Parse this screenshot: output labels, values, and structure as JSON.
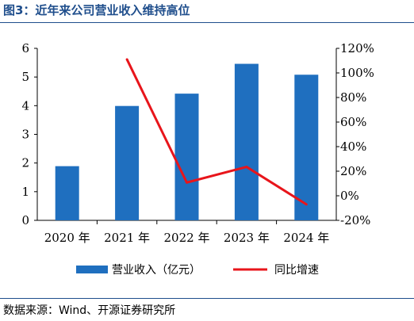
{
  "figure_title": "图3：近年来公司营业收入维持高位",
  "source_note": "数据来源：Wind、开源证券研究所",
  "chart_data": {
    "type": "bar+line",
    "categories": [
      "2020 年",
      "2021 年",
      "2022 年",
      "2023 年",
      "2024 年"
    ],
    "series": [
      {
        "name": "营业收入（亿元）",
        "type": "bar",
        "axis": "left",
        "values": [
          1.89,
          3.99,
          4.42,
          5.46,
          5.08
        ],
        "color": "#1f6fbf"
      },
      {
        "name": "同比增速",
        "type": "line",
        "axis": "right",
        "values": [
          null,
          111.0,
          10.8,
          23.5,
          -7.0
        ],
        "color": "#e8151b"
      }
    ],
    "left_axis": {
      "ylim": [
        0,
        6
      ],
      "ticks": [
        "0",
        "1",
        "2",
        "3",
        "4",
        "5",
        "6"
      ]
    },
    "right_axis": {
      "ylim": [
        -20,
        120
      ],
      "ticks": [
        "-20%",
        "0%",
        "20%",
        "40%",
        "60%",
        "80%",
        "100%",
        "120%"
      ]
    },
    "legend_position": "bottom"
  }
}
